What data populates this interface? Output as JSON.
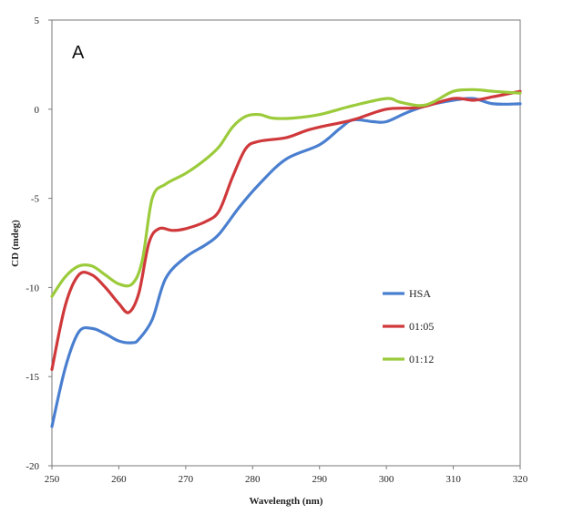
{
  "chart_data": {
    "type": "line",
    "panel_label": "A",
    "xlabel": "Wavelength (nm)",
    "ylabel": "CD (mdeg)",
    "xlim": [
      250,
      320
    ],
    "ylim": [
      -20,
      5
    ],
    "xticks": [
      250,
      260,
      270,
      280,
      290,
      300,
      310,
      320
    ],
    "yticks": [
      5,
      0,
      -5,
      -10,
      -15,
      -20
    ],
    "grid": false,
    "legend_position": "right-middle",
    "series": [
      {
        "name": "HSA",
        "color": "#4a7fd0",
        "points": [
          [
            250,
            -17.8
          ],
          [
            252,
            -14.5
          ],
          [
            254,
            -12.5
          ],
          [
            256,
            -12.3
          ],
          [
            258,
            -12.6
          ],
          [
            260,
            -13.0
          ],
          [
            262,
            -13.1
          ],
          [
            263,
            -12.9
          ],
          [
            265,
            -11.8
          ],
          [
            267,
            -9.5
          ],
          [
            270,
            -8.3
          ],
          [
            273,
            -7.6
          ],
          [
            275,
            -7.0
          ],
          [
            278,
            -5.5
          ],
          [
            281,
            -4.2
          ],
          [
            285,
            -2.8
          ],
          [
            290,
            -2.0
          ],
          [
            293,
            -1.1
          ],
          [
            295,
            -0.6
          ],
          [
            298,
            -0.7
          ],
          [
            300,
            -0.7
          ],
          [
            303,
            -0.2
          ],
          [
            306,
            0.2
          ],
          [
            310,
            0.5
          ],
          [
            313,
            0.6
          ],
          [
            316,
            0.3
          ],
          [
            320,
            0.3
          ]
        ]
      },
      {
        "name": "01:05",
        "color": "#d0393b",
        "points": [
          [
            250,
            -14.6
          ],
          [
            252,
            -11.0
          ],
          [
            254,
            -9.3
          ],
          [
            256,
            -9.3
          ],
          [
            258,
            -10.0
          ],
          [
            260,
            -10.9
          ],
          [
            261.5,
            -11.4
          ],
          [
            263,
            -10.3
          ],
          [
            264.5,
            -7.5
          ],
          [
            266,
            -6.7
          ],
          [
            268,
            -6.8
          ],
          [
            270,
            -6.7
          ],
          [
            273,
            -6.3
          ],
          [
            275,
            -5.7
          ],
          [
            277,
            -3.8
          ],
          [
            279,
            -2.2
          ],
          [
            281,
            -1.8
          ],
          [
            285,
            -1.6
          ],
          [
            288,
            -1.2
          ],
          [
            290,
            -1.0
          ],
          [
            295,
            -0.6
          ],
          [
            300,
            0.0
          ],
          [
            305,
            0.1
          ],
          [
            310,
            0.6
          ],
          [
            313,
            0.5
          ],
          [
            316,
            0.7
          ],
          [
            320,
            1.0
          ]
        ]
      },
      {
        "name": "01:12",
        "color": "#9bcb3b",
        "points": [
          [
            250,
            -10.5
          ],
          [
            252,
            -9.4
          ],
          [
            254,
            -8.8
          ],
          [
            256,
            -8.8
          ],
          [
            258,
            -9.3
          ],
          [
            260,
            -9.8
          ],
          [
            262,
            -9.8
          ],
          [
            263.5,
            -8.5
          ],
          [
            265,
            -5.0
          ],
          [
            267,
            -4.2
          ],
          [
            270,
            -3.6
          ],
          [
            273,
            -2.8
          ],
          [
            275,
            -2.1
          ],
          [
            277,
            -1.0
          ],
          [
            279,
            -0.4
          ],
          [
            281,
            -0.3
          ],
          [
            283,
            -0.5
          ],
          [
            286,
            -0.5
          ],
          [
            290,
            -0.3
          ],
          [
            295,
            0.2
          ],
          [
            300,
            0.6
          ],
          [
            302,
            0.4
          ],
          [
            305,
            0.2
          ],
          [
            307,
            0.4
          ],
          [
            310,
            1.0
          ],
          [
            313,
            1.1
          ],
          [
            316,
            1.0
          ],
          [
            320,
            0.9
          ]
        ]
      }
    ]
  }
}
